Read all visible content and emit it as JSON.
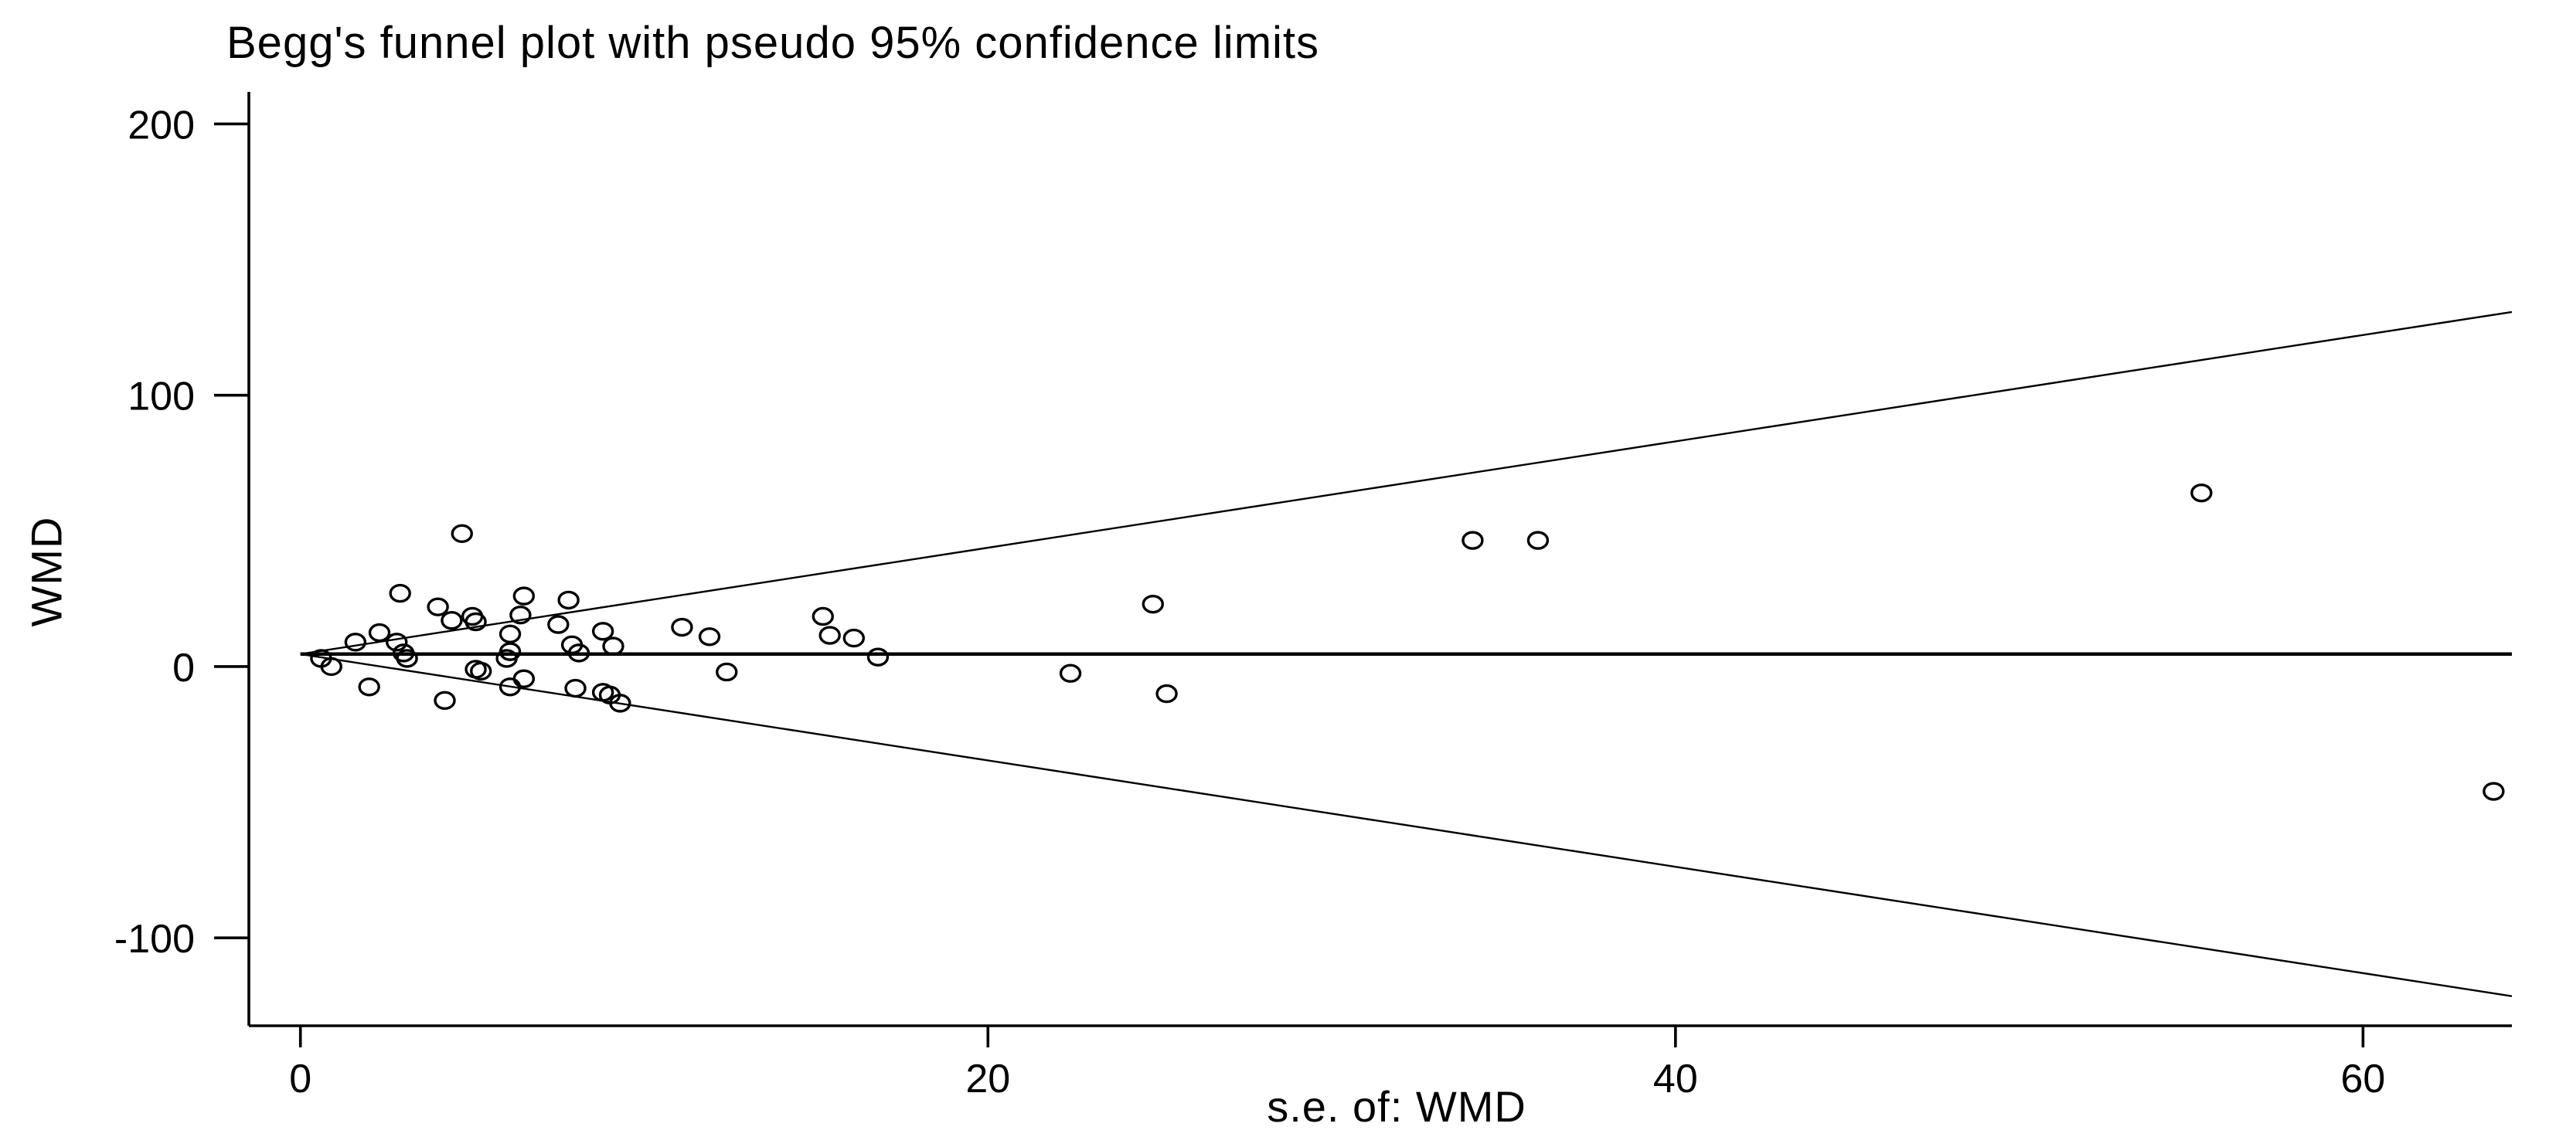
{
  "page": {
    "background": "#ffffff"
  },
  "chart_data": {
    "type": "scatter",
    "title": "Begg's funnel plot with pseudo 95% confidence limits",
    "xlabel": "s.e. of: WMD",
    "ylabel": "WMD",
    "x_ticks": [
      0,
      20,
      40,
      60
    ],
    "y_ticks": [
      200,
      100,
      0,
      -100
    ],
    "xlim": [
      -1.5,
      64.33
    ],
    "ylim": [
      -132.4,
      211.8
    ],
    "grid": false,
    "legend": "none",
    "pooled_estimate": 4.6,
    "ci_multiplier": 1.96,
    "funnel_se_range": [
      0,
      64.33
    ],
    "marker": "hollow-circle",
    "colors": {
      "line": "#000000",
      "marker": "#000000",
      "text": "#000000",
      "background": "#ffffff"
    },
    "points": [
      [
        0.6,
        3
      ],
      [
        0.9,
        0
      ],
      [
        1.6,
        9
      ],
      [
        2.0,
        -7.5
      ],
      [
        2.3,
        12.5
      ],
      [
        2.8,
        9
      ],
      [
        2.9,
        27
      ],
      [
        3.0,
        5
      ],
      [
        3.1,
        3
      ],
      [
        4.0,
        22
      ],
      [
        4.2,
        -12.5
      ],
      [
        4.4,
        17
      ],
      [
        4.7,
        49
      ],
      [
        5.0,
        18.5
      ],
      [
        5.1,
        16.5
      ],
      [
        5.1,
        -1
      ],
      [
        5.25,
        -1.7
      ],
      [
        6.0,
        3
      ],
      [
        6.1,
        5.5
      ],
      [
        6.1,
        12
      ],
      [
        6.1,
        -7.5
      ],
      [
        6.4,
        19
      ],
      [
        6.5,
        26
      ],
      [
        6.5,
        -4.5
      ],
      [
        7.5,
        15.5
      ],
      [
        7.8,
        24.5
      ],
      [
        7.9,
        8
      ],
      [
        8.0,
        -8
      ],
      [
        8.1,
        5
      ],
      [
        8.8,
        13
      ],
      [
        8.8,
        -9.5
      ],
      [
        9.0,
        -10.5
      ],
      [
        9.1,
        7.5
      ],
      [
        9.3,
        -13.5
      ],
      [
        11.1,
        14.5
      ],
      [
        11.9,
        11
      ],
      [
        12.4,
        -2
      ],
      [
        15.2,
        18.5
      ],
      [
        15.4,
        11.5
      ],
      [
        16.1,
        10.5
      ],
      [
        16.8,
        3.5
      ],
      [
        22.4,
        -2.5
      ],
      [
        24.8,
        23
      ],
      [
        25.2,
        -10
      ],
      [
        34.1,
        46.5
      ],
      [
        36.0,
        46.5
      ],
      [
        55.3,
        64
      ],
      [
        63.8,
        -46
      ]
    ]
  }
}
